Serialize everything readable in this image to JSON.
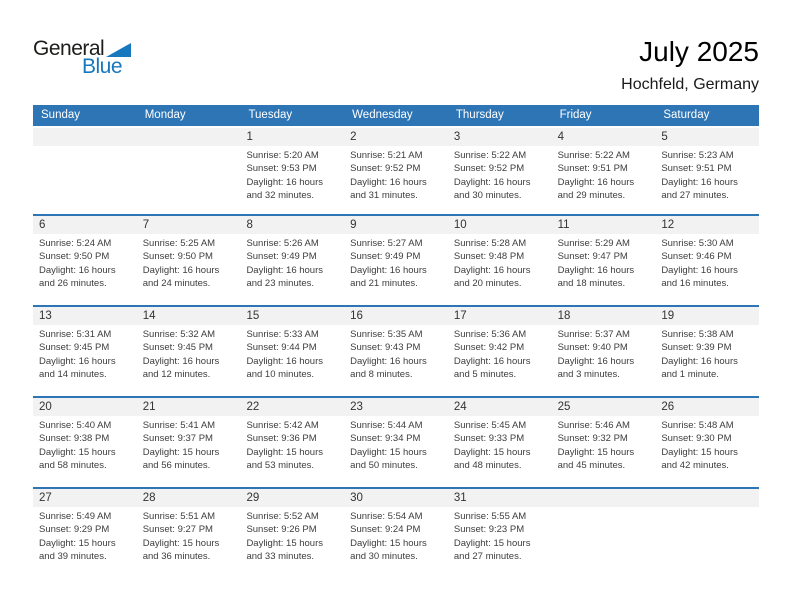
{
  "logo": {
    "general": "General",
    "blue": "Blue"
  },
  "header": {
    "title": "July 2025",
    "location": "Hochfeld, Germany"
  },
  "colors": {
    "accent_blue": "#2e75b5",
    "logo_blue": "#1878be",
    "number_strip_gray": "#f2f2f2"
  },
  "calendar": {
    "day_headers": [
      "Sunday",
      "Monday",
      "Tuesday",
      "Wednesday",
      "Thursday",
      "Friday",
      "Saturday"
    ],
    "weeks": [
      {
        "days": [
          null,
          null,
          {
            "date": "1",
            "sunrise": "Sunrise: 5:20 AM",
            "sunset": "Sunset: 9:53 PM",
            "daylight": "Daylight: 16 hours and 32 minutes."
          },
          {
            "date": "2",
            "sunrise": "Sunrise: 5:21 AM",
            "sunset": "Sunset: 9:52 PM",
            "daylight": "Daylight: 16 hours and 31 minutes."
          },
          {
            "date": "3",
            "sunrise": "Sunrise: 5:22 AM",
            "sunset": "Sunset: 9:52 PM",
            "daylight": "Daylight: 16 hours and 30 minutes."
          },
          {
            "date": "4",
            "sunrise": "Sunrise: 5:22 AM",
            "sunset": "Sunset: 9:51 PM",
            "daylight": "Daylight: 16 hours and 29 minutes."
          },
          {
            "date": "5",
            "sunrise": "Sunrise: 5:23 AM",
            "sunset": "Sunset: 9:51 PM",
            "daylight": "Daylight: 16 hours and 27 minutes."
          }
        ]
      },
      {
        "days": [
          {
            "date": "6",
            "sunrise": "Sunrise: 5:24 AM",
            "sunset": "Sunset: 9:50 PM",
            "daylight": "Daylight: 16 hours and 26 minutes."
          },
          {
            "date": "7",
            "sunrise": "Sunrise: 5:25 AM",
            "sunset": "Sunset: 9:50 PM",
            "daylight": "Daylight: 16 hours and 24 minutes."
          },
          {
            "date": "8",
            "sunrise": "Sunrise: 5:26 AM",
            "sunset": "Sunset: 9:49 PM",
            "daylight": "Daylight: 16 hours and 23 minutes."
          },
          {
            "date": "9",
            "sunrise": "Sunrise: 5:27 AM",
            "sunset": "Sunset: 9:49 PM",
            "daylight": "Daylight: 16 hours and 21 minutes."
          },
          {
            "date": "10",
            "sunrise": "Sunrise: 5:28 AM",
            "sunset": "Sunset: 9:48 PM",
            "daylight": "Daylight: 16 hours and 20 minutes."
          },
          {
            "date": "11",
            "sunrise": "Sunrise: 5:29 AM",
            "sunset": "Sunset: 9:47 PM",
            "daylight": "Daylight: 16 hours and 18 minutes."
          },
          {
            "date": "12",
            "sunrise": "Sunrise: 5:30 AM",
            "sunset": "Sunset: 9:46 PM",
            "daylight": "Daylight: 16 hours and 16 minutes."
          }
        ]
      },
      {
        "days": [
          {
            "date": "13",
            "sunrise": "Sunrise: 5:31 AM",
            "sunset": "Sunset: 9:45 PM",
            "daylight": "Daylight: 16 hours and 14 minutes."
          },
          {
            "date": "14",
            "sunrise": "Sunrise: 5:32 AM",
            "sunset": "Sunset: 9:45 PM",
            "daylight": "Daylight: 16 hours and 12 minutes."
          },
          {
            "date": "15",
            "sunrise": "Sunrise: 5:33 AM",
            "sunset": "Sunset: 9:44 PM",
            "daylight": "Daylight: 16 hours and 10 minutes."
          },
          {
            "date": "16",
            "sunrise": "Sunrise: 5:35 AM",
            "sunset": "Sunset: 9:43 PM",
            "daylight": "Daylight: 16 hours and 8 minutes."
          },
          {
            "date": "17",
            "sunrise": "Sunrise: 5:36 AM",
            "sunset": "Sunset: 9:42 PM",
            "daylight": "Daylight: 16 hours and 5 minutes."
          },
          {
            "date": "18",
            "sunrise": "Sunrise: 5:37 AM",
            "sunset": "Sunset: 9:40 PM",
            "daylight": "Daylight: 16 hours and 3 minutes."
          },
          {
            "date": "19",
            "sunrise": "Sunrise: 5:38 AM",
            "sunset": "Sunset: 9:39 PM",
            "daylight": "Daylight: 16 hours and 1 minute."
          }
        ]
      },
      {
        "days": [
          {
            "date": "20",
            "sunrise": "Sunrise: 5:40 AM",
            "sunset": "Sunset: 9:38 PM",
            "daylight": "Daylight: 15 hours and 58 minutes."
          },
          {
            "date": "21",
            "sunrise": "Sunrise: 5:41 AM",
            "sunset": "Sunset: 9:37 PM",
            "daylight": "Daylight: 15 hours and 56 minutes."
          },
          {
            "date": "22",
            "sunrise": "Sunrise: 5:42 AM",
            "sunset": "Sunset: 9:36 PM",
            "daylight": "Daylight: 15 hours and 53 minutes."
          },
          {
            "date": "23",
            "sunrise": "Sunrise: 5:44 AM",
            "sunset": "Sunset: 9:34 PM",
            "daylight": "Daylight: 15 hours and 50 minutes."
          },
          {
            "date": "24",
            "sunrise": "Sunrise: 5:45 AM",
            "sunset": "Sunset: 9:33 PM",
            "daylight": "Daylight: 15 hours and 48 minutes."
          },
          {
            "date": "25",
            "sunrise": "Sunrise: 5:46 AM",
            "sunset": "Sunset: 9:32 PM",
            "daylight": "Daylight: 15 hours and 45 minutes."
          },
          {
            "date": "26",
            "sunrise": "Sunrise: 5:48 AM",
            "sunset": "Sunset: 9:30 PM",
            "daylight": "Daylight: 15 hours and 42 minutes."
          }
        ]
      },
      {
        "days": [
          {
            "date": "27",
            "sunrise": "Sunrise: 5:49 AM",
            "sunset": "Sunset: 9:29 PM",
            "daylight": "Daylight: 15 hours and 39 minutes."
          },
          {
            "date": "28",
            "sunrise": "Sunrise: 5:51 AM",
            "sunset": "Sunset: 9:27 PM",
            "daylight": "Daylight: 15 hours and 36 minutes."
          },
          {
            "date": "29",
            "sunrise": "Sunrise: 5:52 AM",
            "sunset": "Sunset: 9:26 PM",
            "daylight": "Daylight: 15 hours and 33 minutes."
          },
          {
            "date": "30",
            "sunrise": "Sunrise: 5:54 AM",
            "sunset": "Sunset: 9:24 PM",
            "daylight": "Daylight: 15 hours and 30 minutes."
          },
          {
            "date": "31",
            "sunrise": "Sunrise: 5:55 AM",
            "sunset": "Sunset: 9:23 PM",
            "daylight": "Daylight: 15 hours and 27 minutes."
          },
          null,
          null
        ]
      }
    ]
  }
}
